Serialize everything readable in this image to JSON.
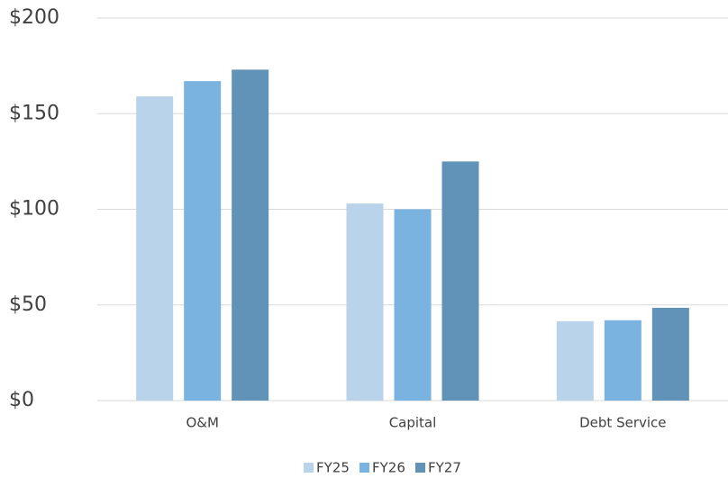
{
  "chart_data": {
    "type": "bar",
    "categories": [
      "O&M",
      "Capital",
      "Debt Service"
    ],
    "series": [
      {
        "name": "FY25",
        "color": "#b8d3ea",
        "values": [
          159,
          103,
          41.5
        ]
      },
      {
        "name": "FY26",
        "color": "#7ab3df",
        "values": [
          167,
          100,
          42
        ]
      },
      {
        "name": "FY27",
        "color": "#6193b8",
        "values": [
          173,
          125,
          48.5
        ]
      }
    ],
    "ylim": [
      0,
      200
    ],
    "yticks": [
      {
        "value": 0,
        "label": "$0"
      },
      {
        "value": 50,
        "label": "$50"
      },
      {
        "value": 100,
        "label": "$100"
      },
      {
        "value": 150,
        "label": "$150"
      },
      {
        "value": 200,
        "label": "$200"
      }
    ],
    "grid": true,
    "legend": "bottom"
  }
}
